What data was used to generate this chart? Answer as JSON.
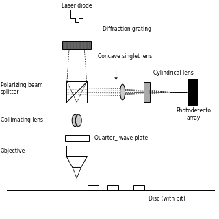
{
  "bg_color": "#ffffff",
  "line_color": "#000000",
  "gray_dark": "#666666",
  "gray_mid": "#aaaaaa",
  "gray_light": "#cccccc",
  "labels": {
    "laser": "Laser diode",
    "diffraction": "Diffraction grating",
    "concave": "Concave singlet lens",
    "cylindrical": "Cylindrical lens",
    "polarizing": "Polarizing beam\nsplitter",
    "collimating": "ollimating lens",
    "quarter": "Quarter_ wave plate",
    "objective": "Objective",
    "photodetector": "Photodetecto\narray",
    "disc": "Disc (with pit)"
  }
}
